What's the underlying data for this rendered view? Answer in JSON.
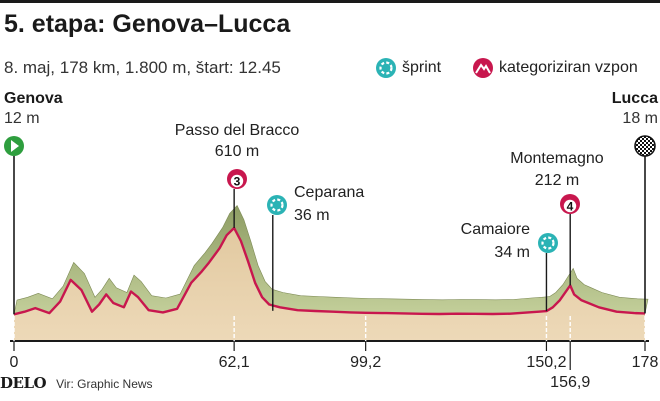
{
  "header": {
    "title": "5. etapa: Genova–Lucca",
    "subtitle": "8. maj, 178 km, 1.800 m, štart: 12.45"
  },
  "legend": {
    "sprint_label": "šprint",
    "climb_label": "kategoriziran vzpon",
    "sprint_color": "#2bb3b5",
    "climb_color": "#c8174e"
  },
  "start": {
    "name": "Genova",
    "altitude": "12 m"
  },
  "finish": {
    "name": "Lucca",
    "altitude": "18 m"
  },
  "footer": {
    "logo": "DELO",
    "source": "Vir: Graphic News"
  },
  "chart_data": {
    "type": "area",
    "xlabel": "",
    "ylabel": "",
    "x_unit": "km",
    "y_unit": "m",
    "xlim": [
      0,
      178
    ],
    "ylim": [
      0,
      610
    ],
    "x_ticks": [
      {
        "value": 0,
        "label": "0"
      },
      {
        "value": 62.1,
        "label": "62,1"
      },
      {
        "value": 99.2,
        "label": "99,2"
      },
      {
        "value": 150.2,
        "label": "150,2"
      },
      {
        "value": 156.9,
        "label": "156,9"
      },
      {
        "value": 178,
        "label": "178"
      }
    ],
    "profile": {
      "x": [
        0,
        3,
        6,
        10,
        13,
        16,
        19,
        22,
        24,
        26,
        28,
        31,
        33,
        35,
        38,
        42,
        46,
        50,
        53,
        55,
        58,
        60,
        62.1,
        64,
        66,
        68,
        70,
        72,
        75,
        80,
        85,
        90,
        95,
        99.2,
        105,
        110,
        115,
        120,
        125,
        130,
        135,
        140,
        145,
        148,
        150.2,
        152,
        154,
        156.9,
        158,
        160,
        162,
        165,
        170,
        175,
        178
      ],
      "y": [
        12,
        30,
        55,
        20,
        100,
        250,
        180,
        30,
        80,
        150,
        90,
        60,
        170,
        130,
        40,
        25,
        50,
        230,
        310,
        370,
        470,
        560,
        610,
        520,
        380,
        230,
        130,
        80,
        60,
        40,
        35,
        30,
        25,
        22,
        20,
        18,
        15,
        14,
        16,
        15,
        14,
        16,
        25,
        30,
        34,
        60,
        110,
        212,
        150,
        110,
        90,
        60,
        30,
        20,
        18
      ]
    },
    "points": [
      {
        "name": "Passo del Bracco",
        "altitude": "610 m",
        "km": 62.1,
        "elevation": 610,
        "type": "climb",
        "category": "3"
      },
      {
        "name": "Ceparana",
        "altitude": "36 m",
        "km": 73,
        "elevation": 36,
        "type": "sprint"
      },
      {
        "name": "Camaiore",
        "altitude": "34 m",
        "km": 150.2,
        "elevation": 34,
        "type": "sprint"
      },
      {
        "name": "Montemagno",
        "altitude": "212 m",
        "km": 156.9,
        "elevation": 212,
        "type": "climb",
        "category": "4"
      }
    ],
    "grid": false,
    "legend_position": "top-right"
  }
}
